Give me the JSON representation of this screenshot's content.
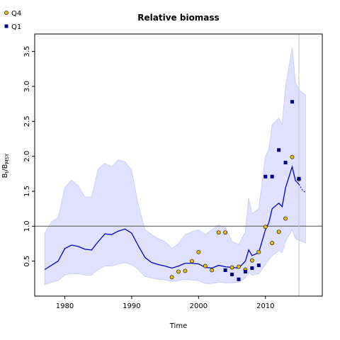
{
  "chart_data": {
    "type": "line",
    "title": "Relative biomass",
    "xlabel": "Time",
    "ylabel_main": "B",
    "ylabel_sub1": "t",
    "ylabel_mid": "/B",
    "ylabel_sub2": "MSY",
    "xlim": [
      1975.5,
      2018.5
    ],
    "ylim": [
      0.0,
      3.75
    ],
    "xticks": [
      1980,
      1990,
      2000,
      2010
    ],
    "yticks": [
      0.5,
      1.0,
      1.5,
      2.0,
      2.5,
      3.0,
      3.5
    ],
    "reference_line_y": 1.0,
    "vertical_line_x": 2015,
    "legend_placement": "top-left",
    "colors": {
      "median": "#0000cc",
      "band_fill": "#e0e0ff",
      "band_edge": "#c8c8f5",
      "q4_fill": "#e8c000",
      "q1_fill": "#00008b",
      "reference": "#666666",
      "vline": "#cccccc"
    },
    "median": [
      [
        1977,
        0.38
      ],
      [
        1978,
        0.44
      ],
      [
        1979,
        0.5
      ],
      [
        1980,
        0.68
      ],
      [
        1981,
        0.73
      ],
      [
        1982,
        0.71
      ],
      [
        1983,
        0.67
      ],
      [
        1984,
        0.66
      ],
      [
        1985,
        0.78
      ],
      [
        1986,
        0.89
      ],
      [
        1987,
        0.88
      ],
      [
        1988,
        0.93
      ],
      [
        1989,
        0.96
      ],
      [
        1990,
        0.9
      ],
      [
        1991,
        0.72
      ],
      [
        1992,
        0.55
      ],
      [
        1993,
        0.48
      ],
      [
        1994,
        0.45
      ],
      [
        1995,
        0.43
      ],
      [
        1996,
        0.4
      ],
      [
        1997,
        0.43
      ],
      [
        1998,
        0.47
      ],
      [
        1999,
        0.47
      ],
      [
        2000,
        0.46
      ],
      [
        2001,
        0.41
      ],
      [
        2002,
        0.4
      ],
      [
        2003,
        0.44
      ],
      [
        2004,
        0.42
      ],
      [
        2005,
        0.41
      ],
      [
        2006,
        0.4
      ],
      [
        2007,
        0.5
      ],
      [
        2007.5,
        0.66
      ],
      [
        2008,
        0.58
      ],
      [
        2009,
        0.62
      ],
      [
        2010,
        0.95
      ],
      [
        2010.5,
        1.05
      ],
      [
        2011,
        1.25
      ],
      [
        2012,
        1.33
      ],
      [
        2012.5,
        1.28
      ],
      [
        2013,
        1.55
      ],
      [
        2014,
        1.85
      ],
      [
        2014.5,
        1.65
      ],
      [
        2015,
        1.6
      ]
    ],
    "median_projection": [
      [
        2015,
        1.6
      ],
      [
        2015.5,
        1.52
      ],
      [
        2016,
        1.48
      ]
    ],
    "upper": [
      [
        1977,
        0.9
      ],
      [
        1978,
        1.06
      ],
      [
        1979,
        1.12
      ],
      [
        1980,
        1.55
      ],
      [
        1981,
        1.66
      ],
      [
        1982,
        1.58
      ],
      [
        1983,
        1.42
      ],
      [
        1984,
        1.42
      ],
      [
        1985,
        1.82
      ],
      [
        1986,
        1.9
      ],
      [
        1987,
        1.85
      ],
      [
        1988,
        1.95
      ],
      [
        1989,
        1.92
      ],
      [
        1990,
        1.8
      ],
      [
        1991,
        1.3
      ],
      [
        1992,
        0.95
      ],
      [
        1993,
        0.88
      ],
      [
        1994,
        0.82
      ],
      [
        1995,
        0.78
      ],
      [
        1996,
        0.68
      ],
      [
        1997,
        0.75
      ],
      [
        1998,
        0.88
      ],
      [
        1999,
        0.92
      ],
      [
        2000,
        0.95
      ],
      [
        2001,
        0.88
      ],
      [
        2002,
        0.95
      ],
      [
        2003,
        1.02
      ],
      [
        2004,
        0.98
      ],
      [
        2005,
        0.78
      ],
      [
        2006,
        0.74
      ],
      [
        2007,
        0.92
      ],
      [
        2007.5,
        1.4
      ],
      [
        2008,
        1.18
      ],
      [
        2009,
        1.25
      ],
      [
        2010,
        2.0
      ],
      [
        2010.5,
        2.1
      ],
      [
        2011,
        2.45
      ],
      [
        2012,
        2.55
      ],
      [
        2012.5,
        2.45
      ],
      [
        2013,
        3.0
      ],
      [
        2014,
        3.55
      ],
      [
        2014.5,
        3.05
      ],
      [
        2015,
        2.95
      ],
      [
        2016,
        2.88
      ]
    ],
    "lower": [
      [
        1977,
        0.16
      ],
      [
        1978,
        0.2
      ],
      [
        1979,
        0.22
      ],
      [
        1980,
        0.3
      ],
      [
        1981,
        0.32
      ],
      [
        1982,
        0.32
      ],
      [
        1983,
        0.3
      ],
      [
        1984,
        0.3
      ],
      [
        1985,
        0.38
      ],
      [
        1986,
        0.43
      ],
      [
        1987,
        0.43
      ],
      [
        1988,
        0.46
      ],
      [
        1989,
        0.48
      ],
      [
        1990,
        0.45
      ],
      [
        1991,
        0.38
      ],
      [
        1992,
        0.28
      ],
      [
        1993,
        0.26
      ],
      [
        1994,
        0.24
      ],
      [
        1995,
        0.23
      ],
      [
        1996,
        0.21
      ],
      [
        1997,
        0.22
      ],
      [
        1998,
        0.24
      ],
      [
        1999,
        0.23
      ],
      [
        2000,
        0.22
      ],
      [
        2001,
        0.18
      ],
      [
        2002,
        0.18
      ],
      [
        2003,
        0.2
      ],
      [
        2004,
        0.19
      ],
      [
        2005,
        0.19
      ],
      [
        2006,
        0.2
      ],
      [
        2007,
        0.26
      ],
      [
        2007.5,
        0.34
      ],
      [
        2008,
        0.3
      ],
      [
        2009,
        0.32
      ],
      [
        2010,
        0.45
      ],
      [
        2010.5,
        0.52
      ],
      [
        2011,
        0.58
      ],
      [
        2012,
        0.65
      ],
      [
        2012.5,
        0.62
      ],
      [
        2013,
        0.78
      ],
      [
        2014,
        0.95
      ],
      [
        2014.5,
        0.82
      ],
      [
        2015,
        0.8
      ],
      [
        2016,
        0.76
      ]
    ],
    "series": [
      {
        "name": "Q4",
        "marker": "circle",
        "points": [
          [
            1996,
            0.27
          ],
          [
            1997,
            0.35
          ],
          [
            1998,
            0.36
          ],
          [
            1999,
            0.5
          ],
          [
            2000,
            0.63
          ],
          [
            2001,
            0.43
          ],
          [
            2002,
            0.37
          ],
          [
            2003,
            0.91
          ],
          [
            2004,
            0.91
          ],
          [
            2005,
            0.41
          ],
          [
            2006,
            0.42
          ],
          [
            2007,
            0.38
          ],
          [
            2008,
            0.51
          ],
          [
            2009,
            0.63
          ],
          [
            2010,
            0.99
          ],
          [
            2011,
            0.76
          ],
          [
            2012,
            0.92
          ],
          [
            2013,
            1.11
          ],
          [
            2014,
            1.99
          ],
          [
            2015,
            1.67
          ]
        ]
      },
      {
        "name": "Q1",
        "marker": "square",
        "points": [
          [
            2004,
            0.37
          ],
          [
            2005,
            0.31
          ],
          [
            2006,
            0.24
          ],
          [
            2007,
            0.35
          ],
          [
            2008,
            0.4
          ],
          [
            2009,
            0.44
          ],
          [
            2010,
            1.71
          ],
          [
            2011,
            1.71
          ],
          [
            2012,
            2.09
          ],
          [
            2013,
            1.91
          ],
          [
            2014,
            2.78
          ],
          [
            2015,
            1.68
          ]
        ]
      }
    ]
  }
}
